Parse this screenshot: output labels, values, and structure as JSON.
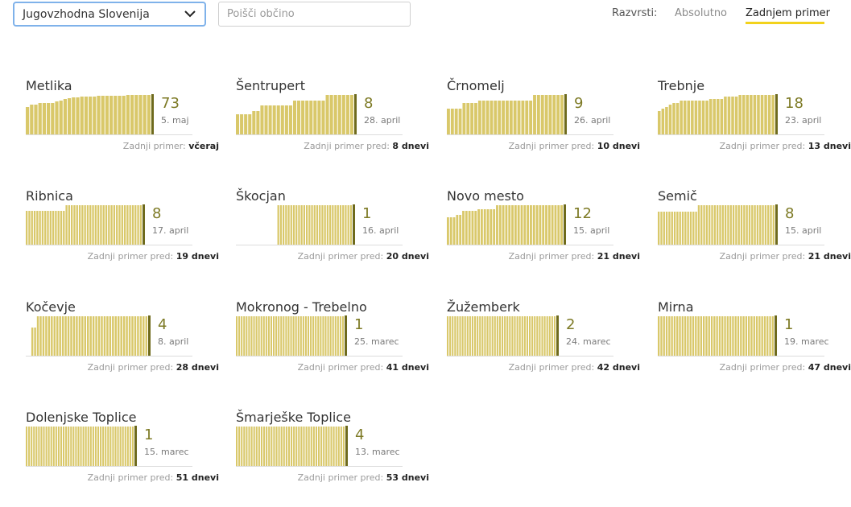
{
  "header": {
    "region_select": {
      "value": "Jugovzhodna Slovenija",
      "icon": "chevron-down-icon"
    },
    "search": {
      "placeholder": "Poišči občino"
    },
    "sort": {
      "label": "Razvrsti:",
      "options": [
        "Absolutno",
        "Zadnjem primer"
      ],
      "active": "Zadnjem primer"
    }
  },
  "colors": {
    "bar": "#d9c86a",
    "marker": "#6e6a1c",
    "count": "#7d7a25",
    "active_underline": "#f2d21c"
  },
  "municipalities": [
    {
      "name": "Metlika",
      "count": "73",
      "date": "5. maj",
      "last_label": "Zadnji primer:",
      "last_value": "včeraj"
    },
    {
      "name": "Šentrupert",
      "count": "8",
      "date": "28. april",
      "last_label": "Zadnji primer pred:",
      "last_value": "8 dnevi"
    },
    {
      "name": "Črnomelj",
      "count": "9",
      "date": "26. april",
      "last_label": "Zadnji primer pred:",
      "last_value": "10 dnevi"
    },
    {
      "name": "Trebnje",
      "count": "18",
      "date": "23. april",
      "last_label": "Zadnji primer pred:",
      "last_value": "13 dnevi"
    },
    {
      "name": "Ribnica",
      "count": "8",
      "date": "17. april",
      "last_label": "Zadnji primer pred:",
      "last_value": "19 dnevi"
    },
    {
      "name": "Škocjan",
      "count": "1",
      "date": "16. april",
      "last_label": "Zadnji primer pred:",
      "last_value": "20 dnevi"
    },
    {
      "name": "Novo mesto",
      "count": "12",
      "date": "15. april",
      "last_label": "Zadnji primer pred:",
      "last_value": "21 dnevi"
    },
    {
      "name": "Semič",
      "count": "8",
      "date": "15. april",
      "last_label": "Zadnji primer pred:",
      "last_value": "21 dnevi"
    },
    {
      "name": "Kočevje",
      "count": "4",
      "date": "8. april",
      "last_label": "Zadnji primer pred:",
      "last_value": "28 dnevi"
    },
    {
      "name": "Mokronog - Trebelno",
      "count": "1",
      "date": "25. marec",
      "last_label": "Zadnji primer pred:",
      "last_value": "41 dnevi"
    },
    {
      "name": "Žužemberk",
      "count": "2",
      "date": "24. marec",
      "last_label": "Zadnji primer pred:",
      "last_value": "42 dnevi"
    },
    {
      "name": "Mirna",
      "count": "1",
      "date": "19. marec",
      "last_label": "Zadnji primer pred:",
      "last_value": "47 dnevi"
    },
    {
      "name": "Dolenjske Toplice",
      "count": "1",
      "date": "15. marec",
      "last_label": "Zadnji primer pred:",
      "last_value": "51 dnevi"
    },
    {
      "name": "Šmarješke Toplice",
      "count": "4",
      "date": "13. marec",
      "last_label": "Zadnji primer pred:",
      "last_value": "53 dnevi"
    }
  ]
}
